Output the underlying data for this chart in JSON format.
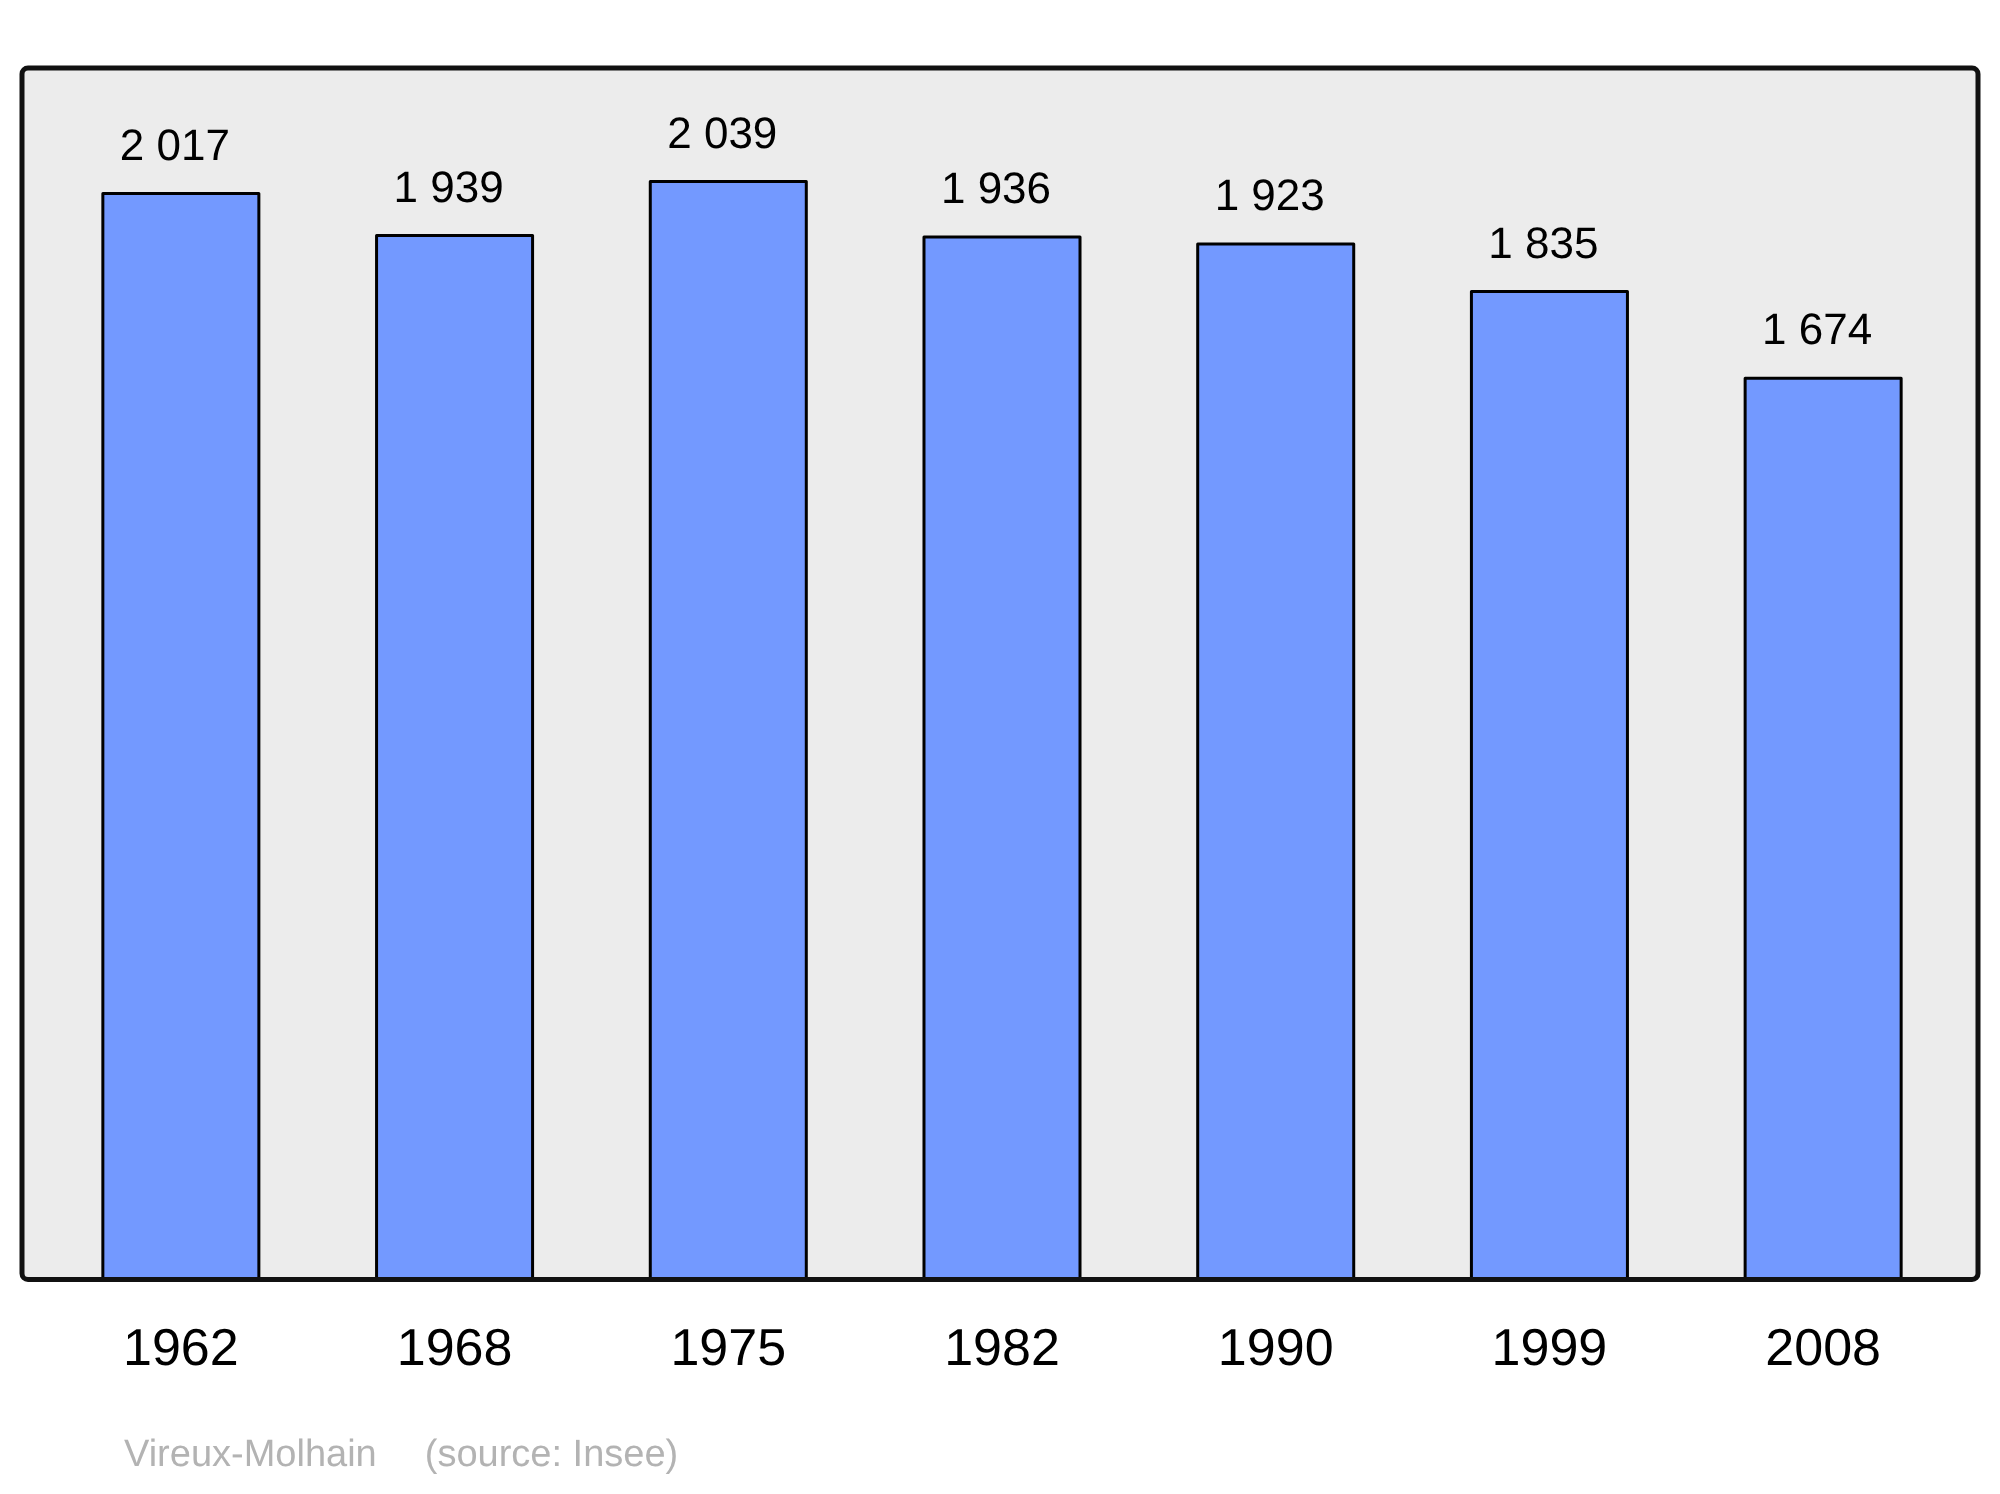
{
  "chart_data": {
    "type": "bar",
    "categories": [
      "1962",
      "1968",
      "1975",
      "1982",
      "1990",
      "1999",
      "2008"
    ],
    "values": [
      2017,
      1939,
      2039,
      1936,
      1923,
      1835,
      1674
    ],
    "value_labels": [
      "2 017",
      "1 939",
      "2 039",
      "1 936",
      "1 923",
      "1 835",
      "1 674"
    ],
    "color": "#7399ff",
    "ylim": [
      0,
      2250
    ],
    "tick_labels": "x",
    "annotations": [
      "Vireux-Molhain",
      "(source: Insee)"
    ]
  }
}
